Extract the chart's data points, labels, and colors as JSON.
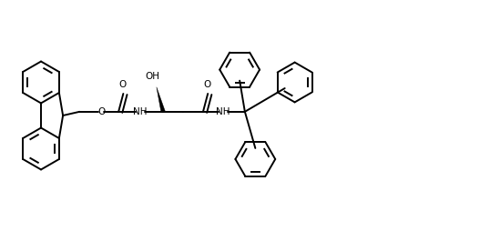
{
  "bg_color": "#ffffff",
  "line_color": "#000000",
  "line_width": 1.4,
  "figsize": [
    5.49,
    2.54
  ],
  "dpi": 100,
  "xlim": [
    0,
    10.5
  ],
  "ylim": [
    0,
    4.8
  ]
}
